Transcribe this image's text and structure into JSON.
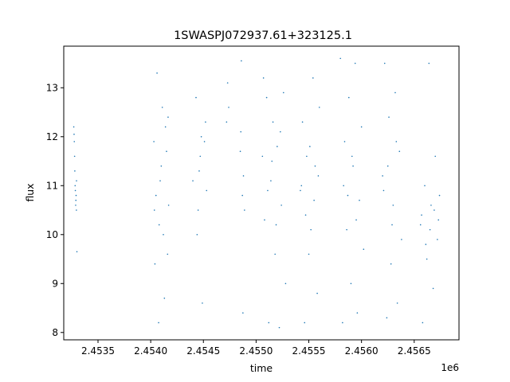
{
  "chart_data": {
    "type": "scatter",
    "title": "1SWASPJ072937.61+323125.1",
    "xlabel": "time",
    "ylabel": "flux",
    "x_offset_label": "1e6",
    "xlim": [
      2453175,
      2456925
    ],
    "ylim": [
      7.85,
      13.85
    ],
    "x_ticks": [
      2453500,
      2454000,
      2454500,
      2455000,
      2455500,
      2456000,
      2456500
    ],
    "x_tick_labels": [
      "2.4535",
      "2.4540",
      "2.4545",
      "2.4550",
      "2.4555",
      "2.4560",
      "2.4565"
    ],
    "y_ticks": [
      8,
      9,
      10,
      11,
      12,
      13
    ],
    "y_tick_labels": [
      "8",
      "9",
      "10",
      "11",
      "12",
      "13"
    ],
    "marker_color": "#1f77b4",
    "grid": false,
    "series": [
      {
        "points": [
          [
            2453270,
            12.2
          ],
          [
            2453275,
            11.9
          ],
          [
            2453280,
            11.3
          ],
          [
            2453285,
            10.9
          ],
          [
            2453290,
            10.7
          ],
          [
            2453278,
            11.6
          ],
          [
            2453283,
            11.0
          ],
          [
            2453288,
            10.6
          ],
          [
            2453292,
            10.8
          ],
          [
            2453296,
            11.1
          ],
          [
            2453300,
            9.65
          ],
          [
            2453273,
            12.05
          ],
          [
            2453295,
            10.5
          ],
          [
            2454030,
            11.9
          ],
          [
            2454050,
            10.8
          ],
          [
            2454080,
            10.2
          ],
          [
            2454100,
            11.4
          ],
          [
            2454120,
            10.0
          ],
          [
            2454140,
            12.2
          ],
          [
            2454160,
            9.6
          ],
          [
            2454170,
            10.6
          ],
          [
            2454040,
            9.4
          ],
          [
            2454060,
            13.3
          ],
          [
            2454090,
            11.1
          ],
          [
            2454110,
            12.6
          ],
          [
            2454130,
            8.7
          ],
          [
            2454150,
            11.7
          ],
          [
            2454165,
            12.4
          ],
          [
            2454035,
            10.5
          ],
          [
            2454075,
            8.2
          ],
          [
            2454400,
            11.1
          ],
          [
            2454430,
            12.8
          ],
          [
            2454450,
            10.5
          ],
          [
            2454470,
            11.6
          ],
          [
            2454490,
            8.6
          ],
          [
            2454510,
            11.9
          ],
          [
            2454520,
            12.3
          ],
          [
            2454530,
            10.9
          ],
          [
            2454440,
            10.0
          ],
          [
            2454460,
            11.3
          ],
          [
            2454480,
            12.0
          ],
          [
            2454720,
            12.3
          ],
          [
            2454730,
            13.1
          ],
          [
            2454740,
            12.6
          ],
          [
            2454850,
            11.7
          ],
          [
            2454860,
            13.55
          ],
          [
            2454870,
            10.8
          ],
          [
            2454880,
            11.2
          ],
          [
            2454890,
            10.5
          ],
          [
            2454855,
            12.1
          ],
          [
            2454875,
            8.4
          ],
          [
            2455060,
            11.6
          ],
          [
            2455080,
            10.3
          ],
          [
            2455100,
            12.8
          ],
          [
            2455120,
            8.2
          ],
          [
            2455140,
            11.1
          ],
          [
            2455160,
            12.3
          ],
          [
            2455180,
            9.6
          ],
          [
            2455200,
            11.8
          ],
          [
            2455220,
            8.1
          ],
          [
            2455240,
            10.6
          ],
          [
            2455260,
            12.9
          ],
          [
            2455280,
            9.0
          ],
          [
            2455070,
            13.2
          ],
          [
            2455110,
            10.9
          ],
          [
            2455150,
            11.5
          ],
          [
            2455190,
            10.2
          ],
          [
            2455230,
            12.1
          ],
          [
            2455420,
            10.9
          ],
          [
            2455440,
            12.3
          ],
          [
            2455460,
            8.2
          ],
          [
            2455480,
            11.6
          ],
          [
            2455500,
            9.6
          ],
          [
            2455520,
            10.1
          ],
          [
            2455540,
            13.2
          ],
          [
            2455560,
            11.4
          ],
          [
            2455580,
            8.8
          ],
          [
            2455600,
            12.6
          ],
          [
            2455430,
            11.0
          ],
          [
            2455470,
            10.4
          ],
          [
            2455510,
            11.8
          ],
          [
            2455550,
            10.7
          ],
          [
            2455590,
            11.2
          ],
          [
            2455800,
            13.6
          ],
          [
            2455820,
            8.2
          ],
          [
            2455840,
            11.9
          ],
          [
            2455860,
            10.1
          ],
          [
            2455880,
            12.8
          ],
          [
            2455900,
            9.0
          ],
          [
            2455920,
            11.4
          ],
          [
            2455940,
            13.5
          ],
          [
            2455960,
            8.4
          ],
          [
            2455980,
            10.7
          ],
          [
            2456000,
            12.2
          ],
          [
            2456020,
            9.7
          ],
          [
            2455830,
            11.0
          ],
          [
            2455870,
            10.8
          ],
          [
            2455910,
            11.6
          ],
          [
            2455950,
            10.3
          ],
          [
            2456200,
            11.2
          ],
          [
            2456220,
            13.5
          ],
          [
            2456240,
            8.3
          ],
          [
            2456260,
            12.4
          ],
          [
            2456280,
            9.4
          ],
          [
            2456300,
            10.6
          ],
          [
            2456320,
            12.9
          ],
          [
            2456340,
            8.6
          ],
          [
            2456360,
            11.7
          ],
          [
            2456380,
            9.9
          ],
          [
            2456210,
            10.9
          ],
          [
            2456250,
            11.4
          ],
          [
            2456290,
            10.2
          ],
          [
            2456330,
            11.9
          ],
          [
            2456560,
            10.2
          ],
          [
            2456580,
            8.2
          ],
          [
            2456600,
            11.0
          ],
          [
            2456620,
            9.5
          ],
          [
            2456640,
            13.5
          ],
          [
            2456660,
            10.6
          ],
          [
            2456680,
            8.9
          ],
          [
            2456700,
            11.6
          ],
          [
            2456720,
            9.9
          ],
          [
            2456740,
            10.8
          ],
          [
            2456570,
            10.4
          ],
          [
            2456610,
            9.8
          ],
          [
            2456650,
            10.1
          ],
          [
            2456690,
            10.5
          ],
          [
            2456730,
            10.3
          ]
        ]
      }
    ]
  }
}
